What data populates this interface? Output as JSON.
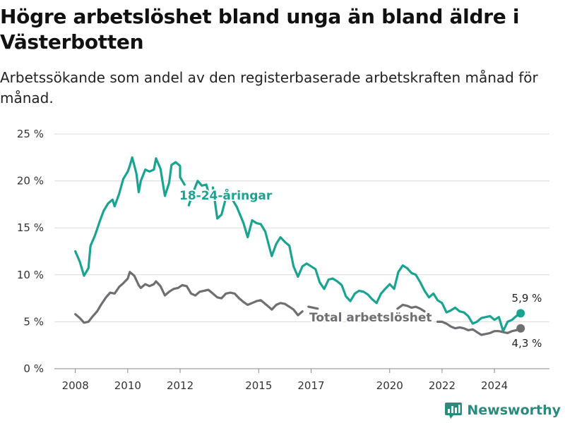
{
  "title": "Högre arbetslöshet bland unga än bland äldre i Västerbotten",
  "subtitle": "Arbetssökande som andel av den registerbaserade arbetskraften månad för månad.",
  "brand": {
    "name": "Newsworthy",
    "icon": "newsworthy-logo-icon",
    "color": "#2a8a7e"
  },
  "chart_data": {
    "type": "line",
    "xlabel": "",
    "ylabel": "",
    "xlim": [
      2007.2,
      2026.1
    ],
    "ylim": [
      0,
      25
    ],
    "y_ticks": [
      0,
      5,
      10,
      15,
      20,
      25
    ],
    "y_tick_labels": [
      "0 %",
      "5 %",
      "10 %",
      "15 %",
      "20 %",
      "25 %"
    ],
    "x_ticks": [
      2008,
      2010,
      2012,
      2015,
      2017,
      2020,
      2022,
      2024
    ],
    "x_tick_labels": [
      "2008",
      "2010",
      "2012",
      "2015",
      "2017",
      "2020",
      "2022",
      "2024"
    ],
    "grid": true,
    "series": [
      {
        "name": "18-24-åringar",
        "color": "#1aa390",
        "end_label": "5,9 %",
        "points": [
          [
            2008.0,
            12.5
          ],
          [
            2008.17,
            11.4
          ],
          [
            2008.33,
            9.9
          ],
          [
            2008.5,
            10.7
          ],
          [
            2008.58,
            13.1
          ],
          [
            2008.75,
            14.2
          ],
          [
            2008.92,
            15.6
          ],
          [
            2009.08,
            16.8
          ],
          [
            2009.25,
            17.6
          ],
          [
            2009.42,
            18.0
          ],
          [
            2009.5,
            17.3
          ],
          [
            2009.67,
            18.6
          ],
          [
            2009.83,
            20.2
          ],
          [
            2010.0,
            21.0
          ],
          [
            2010.08,
            21.6
          ],
          [
            2010.17,
            22.5
          ],
          [
            2010.33,
            20.8
          ],
          [
            2010.42,
            18.8
          ],
          [
            2010.5,
            20.0
          ],
          [
            2010.67,
            21.2
          ],
          [
            2010.83,
            21.0
          ],
          [
            2011.0,
            21.2
          ],
          [
            2011.08,
            22.4
          ],
          [
            2011.25,
            21.3
          ],
          [
            2011.42,
            18.4
          ],
          [
            2011.58,
            19.8
          ],
          [
            2011.67,
            21.7
          ],
          [
            2011.83,
            22.0
          ],
          [
            2012.0,
            21.6
          ],
          [
            2012.0,
            20.4
          ],
          [
            2012.17,
            19.6
          ],
          {
            "gap": true
          },
          [
            2012.33,
            17.4
          ],
          [
            2012.5,
            18.8
          ],
          [
            2012.67,
            20.0
          ],
          [
            2012.83,
            19.5
          ],
          [
            2013.0,
            19.6
          ],
          [
            2013.08,
            18.8
          ],
          {
            "gap": true
          },
          [
            2013.25,
            19.3
          ],
          [
            2013.42,
            16.0
          ],
          [
            2013.58,
            16.4
          ],
          [
            2013.75,
            18.2
          ],
          [
            2014.0,
            18.0
          ],
          [
            2014.17,
            17.2
          ],
          [
            2014.42,
            15.5
          ],
          [
            2014.58,
            14.0
          ],
          [
            2014.75,
            15.8
          ],
          [
            2014.92,
            15.5
          ],
          [
            2015.08,
            15.4
          ],
          [
            2015.25,
            14.6
          ],
          [
            2015.42,
            12.8
          ],
          [
            2015.5,
            12.0
          ],
          [
            2015.67,
            13.3
          ],
          [
            2015.83,
            14.0
          ],
          [
            2016.0,
            13.5
          ],
          [
            2016.17,
            13.1
          ],
          [
            2016.33,
            10.9
          ],
          [
            2016.5,
            9.8
          ],
          [
            2016.67,
            10.9
          ],
          [
            2016.83,
            11.2
          ],
          [
            2017.0,
            10.9
          ],
          [
            2017.17,
            10.6
          ],
          [
            2017.33,
            9.2
          ],
          [
            2017.5,
            8.5
          ],
          [
            2017.67,
            9.5
          ],
          [
            2017.83,
            9.6
          ],
          [
            2018.0,
            9.3
          ],
          [
            2018.17,
            8.9
          ],
          [
            2018.33,
            7.7
          ],
          [
            2018.5,
            7.2
          ],
          [
            2018.67,
            8.0
          ],
          [
            2018.83,
            8.3
          ],
          [
            2019.0,
            8.2
          ],
          [
            2019.17,
            7.9
          ],
          [
            2019.33,
            7.4
          ],
          [
            2019.5,
            7.0
          ],
          [
            2019.67,
            8.0
          ],
          [
            2019.83,
            8.5
          ],
          [
            2020.0,
            9.0
          ],
          [
            2020.17,
            8.5
          ],
          [
            2020.33,
            10.3
          ],
          [
            2020.5,
            11.0
          ],
          [
            2020.67,
            10.7
          ],
          [
            2020.83,
            10.2
          ],
          [
            2021.0,
            10.0
          ],
          [
            2021.17,
            9.2
          ],
          [
            2021.33,
            8.3
          ],
          [
            2021.5,
            7.6
          ],
          [
            2021.67,
            8.0
          ],
          [
            2021.83,
            7.3
          ],
          [
            2022.0,
            7.0
          ],
          [
            2022.17,
            6.0
          ],
          [
            2022.33,
            6.2
          ],
          [
            2022.5,
            6.5
          ],
          [
            2022.67,
            6.1
          ],
          [
            2022.83,
            6.0
          ],
          [
            2023.0,
            5.6
          ],
          [
            2023.17,
            4.8
          ],
          [
            2023.33,
            5.0
          ],
          [
            2023.5,
            5.4
          ],
          [
            2023.67,
            5.5
          ],
          [
            2023.83,
            5.6
          ],
          [
            2024.0,
            5.2
          ],
          [
            2024.17,
            5.5
          ],
          [
            2024.33,
            4.0
          ],
          [
            2024.5,
            5.0
          ],
          [
            2024.67,
            5.2
          ],
          [
            2024.83,
            5.6
          ],
          [
            2025.0,
            5.9
          ]
        ]
      },
      {
        "name": "Total arbetslöshet",
        "color": "#6e6e73",
        "end_label": "4,3 %",
        "points": [
          [
            2008.0,
            5.8
          ],
          [
            2008.17,
            5.4
          ],
          [
            2008.33,
            4.9
          ],
          [
            2008.5,
            5.0
          ],
          [
            2008.67,
            5.6
          ],
          [
            2008.83,
            6.1
          ],
          [
            2009.0,
            6.9
          ],
          [
            2009.17,
            7.6
          ],
          [
            2009.33,
            8.1
          ],
          [
            2009.5,
            8.0
          ],
          [
            2009.67,
            8.7
          ],
          [
            2009.83,
            9.1
          ],
          [
            2010.0,
            9.6
          ],
          [
            2010.08,
            10.3
          ],
          [
            2010.25,
            9.9
          ],
          [
            2010.42,
            8.9
          ],
          [
            2010.5,
            8.6
          ],
          [
            2010.67,
            9.0
          ],
          [
            2010.83,
            8.8
          ],
          [
            2011.0,
            9.0
          ],
          [
            2011.08,
            9.3
          ],
          [
            2011.25,
            8.8
          ],
          [
            2011.42,
            7.8
          ],
          [
            2011.58,
            8.2
          ],
          [
            2011.75,
            8.5
          ],
          [
            2011.92,
            8.6
          ],
          [
            2012.08,
            8.9
          ],
          [
            2012.25,
            8.8
          ],
          [
            2012.42,
            8.0
          ],
          [
            2012.58,
            7.8
          ],
          [
            2012.75,
            8.2
          ],
          [
            2012.92,
            8.3
          ],
          [
            2013.08,
            8.4
          ],
          [
            2013.25,
            8.0
          ],
          [
            2013.42,
            7.6
          ],
          [
            2013.58,
            7.5
          ],
          [
            2013.75,
            8.0
          ],
          [
            2013.92,
            8.1
          ],
          [
            2014.08,
            8.0
          ],
          [
            2014.25,
            7.5
          ],
          [
            2014.42,
            7.1
          ],
          [
            2014.58,
            6.8
          ],
          [
            2014.75,
            7.0
          ],
          [
            2014.92,
            7.2
          ],
          [
            2015.08,
            7.3
          ],
          [
            2015.25,
            6.9
          ],
          [
            2015.42,
            6.5
          ],
          [
            2015.5,
            6.3
          ],
          [
            2015.67,
            6.8
          ],
          [
            2015.83,
            7.0
          ],
          [
            2016.0,
            6.9
          ],
          [
            2016.17,
            6.6
          ],
          [
            2016.33,
            6.3
          ],
          [
            2016.5,
            5.7
          ],
          [
            2016.67,
            6.1
          ],
          {
            "gap": true
          },
          [
            2016.9,
            6.6
          ],
          [
            2017.08,
            6.5
          ],
          [
            2017.25,
            6.4
          ],
          {
            "gap": true
          },
          [
            2020.3,
            6.4
          ],
          [
            2020.5,
            6.8
          ],
          [
            2020.67,
            6.7
          ],
          [
            2020.83,
            6.5
          ],
          [
            2021.0,
            6.6
          ],
          [
            2021.17,
            6.4
          ],
          [
            2021.33,
            6.1
          ],
          {
            "gap": true
          },
          [
            2021.83,
            5.0
          ],
          [
            2022.0,
            5.0
          ],
          [
            2022.17,
            4.8
          ],
          [
            2022.33,
            4.5
          ],
          [
            2022.5,
            4.3
          ],
          [
            2022.67,
            4.4
          ],
          [
            2022.83,
            4.3
          ],
          [
            2023.0,
            4.1
          ],
          [
            2023.17,
            4.2
          ],
          [
            2023.33,
            3.9
          ],
          [
            2023.5,
            3.6
          ],
          [
            2023.67,
            3.7
          ],
          [
            2023.83,
            3.8
          ],
          [
            2024.0,
            4.0
          ],
          [
            2024.17,
            4.0
          ],
          [
            2024.33,
            3.9
          ],
          [
            2024.5,
            3.8
          ],
          [
            2024.67,
            4.0
          ],
          [
            2024.83,
            4.1
          ],
          [
            2025.0,
            4.3
          ]
        ]
      }
    ]
  }
}
